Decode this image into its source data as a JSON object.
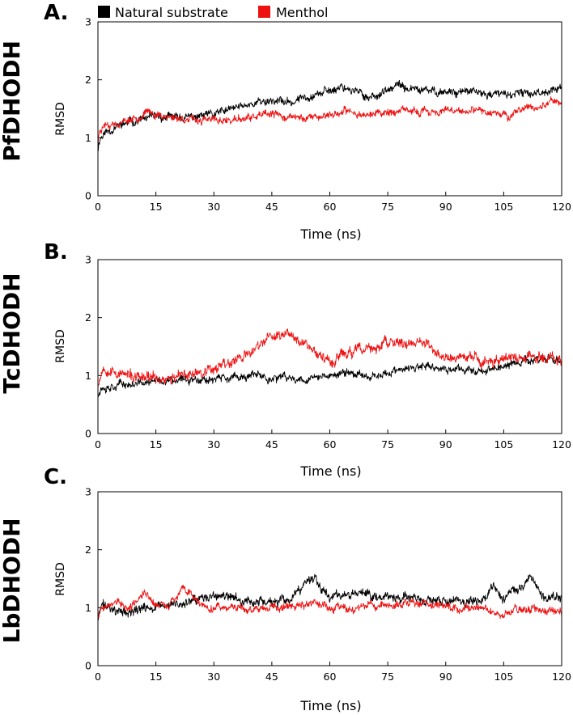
{
  "chart_data": {
    "type": "line",
    "legend": {
      "placement": "top",
      "entries": [
        {
          "label": "Natural substrate",
          "color": "#000000"
        },
        {
          "label": "Menthol",
          "color": "#ee1111"
        }
      ]
    },
    "panels": [
      {
        "letter": "A.",
        "protein": "PfDHODH",
        "xlabel": "Time (ns)",
        "ylabel": "RMSD",
        "xlim": [
          0,
          120
        ],
        "ylim": [
          0,
          3
        ],
        "xticks": [
          "0",
          "15",
          "30",
          "45",
          "60",
          "75",
          "90",
          "105",
          "120"
        ],
        "yticks": [
          "0",
          "1",
          "2",
          "3"
        ],
        "series": [
          {
            "name": "Natural substrate",
            "color": "#000000",
            "noise": 0.06,
            "seed": 11,
            "x": [
              0,
              0.5,
              2,
              5,
              10,
              15,
              20,
              25,
              30,
              35,
              40,
              45,
              50,
              55,
              60,
              63,
              65,
              70,
              75,
              78,
              80,
              85,
              90,
              95,
              100,
              105,
              110,
              115,
              120
            ],
            "y": [
              0.8,
              1.0,
              1.1,
              1.2,
              1.3,
              1.35,
              1.35,
              1.35,
              1.4,
              1.5,
              1.6,
              1.65,
              1.6,
              1.75,
              1.8,
              1.9,
              1.85,
              1.7,
              1.8,
              1.9,
              1.85,
              1.8,
              1.8,
              1.8,
              1.75,
              1.75,
              1.75,
              1.8,
              1.85
            ]
          },
          {
            "name": "Menthol",
            "color": "#ee1111",
            "noise": 0.055,
            "seed": 23,
            "x": [
              0,
              0.5,
              2,
              5,
              10,
              13,
              15,
              20,
              25,
              30,
              35,
              40,
              45,
              50,
              55,
              60,
              65,
              70,
              75,
              80,
              85,
              90,
              95,
              100,
              105,
              106,
              110,
              115,
              118,
              120
            ],
            "y": [
              0.9,
              1.15,
              1.25,
              1.25,
              1.35,
              1.45,
              1.4,
              1.35,
              1.3,
              1.3,
              1.3,
              1.35,
              1.4,
              1.35,
              1.35,
              1.4,
              1.45,
              1.4,
              1.45,
              1.45,
              1.45,
              1.45,
              1.45,
              1.45,
              1.45,
              1.35,
              1.5,
              1.55,
              1.65,
              1.6
            ]
          }
        ]
      },
      {
        "letter": "B.",
        "protein": "TcDHODH",
        "xlabel": "Time (ns)",
        "ylabel": "RMSD",
        "xlim": [
          0,
          120
        ],
        "ylim": [
          0,
          3
        ],
        "xticks": [
          "0",
          "15",
          "30",
          "45",
          "60",
          "75",
          "90",
          "105",
          "120"
        ],
        "yticks": [
          "0",
          "1",
          "2",
          "3"
        ],
        "series": [
          {
            "name": "Natural substrate",
            "color": "#000000",
            "noise": 0.06,
            "seed": 37,
            "x": [
              0,
              1,
              5,
              10,
              15,
              20,
              25,
              30,
              35,
              40,
              45,
              50,
              55,
              60,
              65,
              70,
              75,
              80,
              85,
              90,
              95,
              100,
              105,
              110,
              115,
              120
            ],
            "y": [
              0.7,
              0.8,
              0.85,
              0.85,
              0.9,
              0.9,
              0.95,
              0.95,
              0.95,
              1.0,
              0.95,
              0.95,
              0.95,
              1.0,
              1.05,
              1.0,
              1.05,
              1.1,
              1.15,
              1.1,
              1.1,
              1.1,
              1.15,
              1.25,
              1.3,
              1.25
            ]
          },
          {
            "name": "Menthol",
            "color": "#ee1111",
            "noise": 0.08,
            "seed": 53,
            "x": [
              0,
              1,
              2,
              5,
              10,
              15,
              20,
              25,
              30,
              35,
              40,
              43,
              47,
              50,
              53,
              55,
              58,
              60,
              65,
              70,
              75,
              80,
              83,
              85,
              90,
              95,
              100,
              105,
              110,
              115,
              120
            ],
            "y": [
              0.85,
              1.1,
              1.15,
              1.05,
              0.95,
              0.95,
              0.95,
              1.05,
              1.15,
              1.25,
              1.4,
              1.6,
              1.7,
              1.75,
              1.6,
              1.5,
              1.3,
              1.25,
              1.4,
              1.45,
              1.55,
              1.55,
              1.6,
              1.5,
              1.3,
              1.3,
              1.25,
              1.3,
              1.3,
              1.35,
              1.3
            ]
          }
        ]
      },
      {
        "letter": "C.",
        "protein": "LbDHODH",
        "xlabel": "Time (ns)",
        "ylabel": "RMSD",
        "xlim": [
          0,
          120
        ],
        "ylim": [
          0,
          3
        ],
        "xticks": [
          "0",
          "15",
          "30",
          "45",
          "60",
          "75",
          "90",
          "105",
          "120"
        ],
        "yticks": [
          "0",
          "1",
          "2",
          "3"
        ],
        "series": [
          {
            "name": "Natural substrate",
            "color": "#000000",
            "noise": 0.07,
            "seed": 71,
            "x": [
              0,
              1,
              3,
              5,
              8,
              12,
              15,
              20,
              25,
              30,
              35,
              40,
              45,
              50,
              53,
              56,
              58,
              60,
              65,
              70,
              75,
              80,
              85,
              90,
              95,
              100,
              102,
              105,
              110,
              112,
              115,
              120
            ],
            "y": [
              0.8,
              1.05,
              1.0,
              0.95,
              0.9,
              1.0,
              1.0,
              1.05,
              1.1,
              1.2,
              1.15,
              1.1,
              1.1,
              1.1,
              1.35,
              1.55,
              1.35,
              1.2,
              1.25,
              1.25,
              1.2,
              1.15,
              1.1,
              1.1,
              1.1,
              1.15,
              1.35,
              1.2,
              1.35,
              1.5,
              1.2,
              1.15
            ]
          },
          {
            "name": "Menthol",
            "color": "#ee1111",
            "noise": 0.06,
            "seed": 89,
            "x": [
              0,
              1,
              3,
              5,
              8,
              12,
              15,
              18,
              20,
              22,
              24,
              26,
              30,
              35,
              40,
              45,
              50,
              55,
              60,
              65,
              70,
              75,
              80,
              85,
              90,
              95,
              100,
              104,
              108,
              112,
              116,
              120
            ],
            "y": [
              0.8,
              1.0,
              1.05,
              1.1,
              1.0,
              1.25,
              1.05,
              1.05,
              1.15,
              1.35,
              1.25,
              1.05,
              1.0,
              1.0,
              0.95,
              1.0,
              1.05,
              1.05,
              1.0,
              1.0,
              1.05,
              1.05,
              1.05,
              1.05,
              1.0,
              1.0,
              1.0,
              0.85,
              0.95,
              0.95,
              0.95,
              0.9
            ]
          }
        ]
      }
    ]
  }
}
